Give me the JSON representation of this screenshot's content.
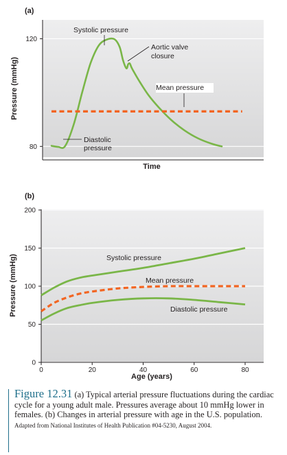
{
  "chart_data": [
    {
      "panel": "(a)",
      "type": "line",
      "xlabel": "Time",
      "ylabel": "Pressure (mmHg)",
      "yticks": [
        80,
        120
      ],
      "ylim": [
        76,
        127
      ],
      "grid": true,
      "series": [
        {
          "name": "Systolic pressure",
          "style": "solid",
          "color": "#7ab648",
          "x": [
            0.0,
            0.04,
            0.08,
            0.13,
            0.18,
            0.23,
            0.28,
            0.33,
            0.37,
            0.4,
            0.42,
            0.44,
            0.45,
            0.46,
            0.47,
            0.49,
            0.52,
            0.57,
            0.63,
            0.7,
            0.78,
            0.86,
            0.94,
            1.0
          ],
          "y": [
            80.2,
            79.8,
            80.1,
            88.0,
            100.0,
            111.0,
            117.7,
            119.8,
            119.8,
            117.0,
            112.0,
            109.0,
            110.5,
            110.8,
            109.3,
            107.0,
            103.8,
            99.0,
            94.5,
            90.0,
            86.0,
            83.0,
            81.0,
            80.0
          ]
        },
        {
          "name": "Mean pressure",
          "style": "dashed",
          "color": "#f26522",
          "x": [
            0.0,
            1.12
          ],
          "y": [
            93.0,
            93.0
          ]
        }
      ],
      "annotations": [
        {
          "text": [
            "Systolic pressure"
          ]
        },
        {
          "text": [
            "Aortic valve",
            "closure"
          ]
        },
        {
          "text": [
            "Mean pressure"
          ]
        },
        {
          "text": [
            "Diastolic",
            "pressure"
          ]
        }
      ]
    },
    {
      "panel": "(b)",
      "type": "line",
      "xlabel": "Age (years)",
      "ylabel": "Pressure (mmHg)",
      "xticks": [
        0,
        20,
        40,
        60,
        80
      ],
      "yticks": [
        0,
        50,
        100,
        150,
        200
      ],
      "xlim": [
        0,
        80
      ],
      "ylim": [
        0,
        200
      ],
      "grid": true,
      "series": [
        {
          "name": "Systolic pressure",
          "style": "solid",
          "color": "#7ab648",
          "x": [
            0,
            5,
            10,
            15,
            20,
            30,
            40,
            50,
            60,
            70,
            80
          ],
          "y": [
            88,
            98,
            106,
            111,
            114,
            119,
            124,
            130,
            136,
            143,
            150
          ]
        },
        {
          "name": "Mean pressure",
          "style": "dashed",
          "color": "#f26522",
          "x": [
            0,
            5,
            10,
            15,
            20,
            30,
            40,
            50,
            60,
            70,
            80
          ],
          "y": [
            67,
            78,
            85,
            90,
            93,
            97,
            99,
            100,
            100,
            100,
            100
          ]
        },
        {
          "name": "Diastolic pressure",
          "style": "solid",
          "color": "#7ab648",
          "x": [
            0,
            5,
            10,
            15,
            20,
            30,
            40,
            50,
            60,
            70,
            80
          ],
          "y": [
            55,
            64,
            71,
            75,
            78,
            82,
            84,
            84,
            82,
            79,
            76
          ]
        }
      ],
      "annotations": [
        {
          "text": [
            "Systolic pressure"
          ]
        },
        {
          "text": [
            "Mean pressure"
          ]
        },
        {
          "text": [
            "Diastolic pressure"
          ]
        }
      ]
    }
  ],
  "caption": {
    "figure_label": "Figure 12.31",
    "text": " (a) Typical arterial pressure fluctuations during the cardiac cycle for a young adult male. Pressures average about 10 mmHg lower in females. (b) Changes in arterial pressure with age in the U.S. population. ",
    "source": "Adapted from National Institutes of Health Publication #04-5230, August 2004."
  }
}
